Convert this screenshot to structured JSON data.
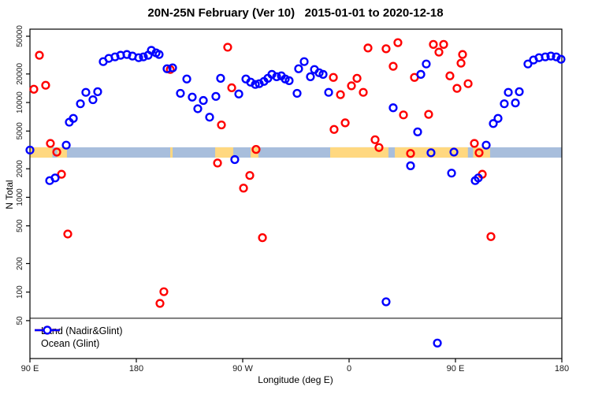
{
  "title": "20N-25N February (Ver 10)   2015-01-01 to 2020-12-18",
  "chart_data": {
    "type": "scatter",
    "title": "20N-25N February (Ver 10)   2015-01-01 to 2020-12-18",
    "xlabel": "Longitude (deg E)",
    "ylabel": "N Total",
    "x_axis": {
      "note": "longitude axis starts at 90E and wraps eastward 450 degrees to 180",
      "range_axis_deg": [
        90,
        540
      ],
      "ticks_axis_deg": [
        90,
        180,
        270,
        360,
        450,
        540
      ],
      "tick_labels": [
        "90 E",
        "180",
        "90 W",
        "0",
        "90 E",
        "180"
      ]
    },
    "y_axis": {
      "scale": "log",
      "range": [
        20,
        59000
      ],
      "ticks": [
        50000,
        20000,
        10000,
        5000,
        2000,
        1000,
        500,
        200,
        100,
        50
      ],
      "tick_labels": [
        "50000",
        "20000",
        "10000",
        "5000",
        "2000",
        "1000",
        "500",
        "200",
        "100",
        "50"
      ]
    },
    "grid": "off",
    "reference_line": {
      "value": 53,
      "color": "#000000"
    },
    "map_band": {
      "description": "land/ocean strip for 20N-25N drawn across plot",
      "value_range": [
        2620,
        3370
      ],
      "ocean_color": "#A8BEDC",
      "land_color": "#FFD880",
      "land_segments_axis_deg": [
        [
          90,
          109
        ],
        [
          113,
          121.3
        ],
        [
          208.7,
          210.7
        ],
        [
          246.7,
          262
        ],
        [
          276.7,
          283.3
        ],
        [
          344,
          393.3
        ],
        [
          398.7,
          460.5
        ],
        [
          465,
          479.3
        ]
      ]
    },
    "legend": {
      "position": "bottom-left"
    },
    "series": [
      {
        "name": "Land (Nadir&Glint)",
        "color": "#FF0000",
        "points": [
          [
            98,
            31500
          ],
          [
            93.3,
            13800
          ],
          [
            103.3,
            15200
          ],
          [
            107.3,
            3700
          ],
          [
            112.7,
            3000
          ],
          [
            116.7,
            1750
          ],
          [
            122,
            410
          ],
          [
            203.3,
            101
          ],
          [
            200,
            76
          ],
          [
            208.7,
            22300
          ],
          [
            248.7,
            2300
          ],
          [
            252,
            5800
          ],
          [
            257.3,
            38300
          ],
          [
            260.7,
            14300
          ],
          [
            270.7,
            1250
          ],
          [
            276,
            1700
          ],
          [
            281.3,
            3200
          ],
          [
            286.7,
            375
          ],
          [
            346.7,
            18400
          ],
          [
            352.7,
            12100
          ],
          [
            347.3,
            5200
          ],
          [
            356.7,
            6100
          ],
          [
            362,
            15000
          ],
          [
            366.7,
            18000
          ],
          [
            372,
            12800
          ],
          [
            376,
            37600
          ],
          [
            382,
            4050
          ],
          [
            385.3,
            3350
          ],
          [
            391.3,
            36900
          ],
          [
            397.3,
            24100
          ],
          [
            401.3,
            42800
          ],
          [
            406,
            7400
          ],
          [
            412,
            2900
          ],
          [
            415.3,
            18400
          ],
          [
            427.3,
            7500
          ],
          [
            431.3,
            41000
          ],
          [
            436,
            34000
          ],
          [
            440,
            41000
          ],
          [
            445.3,
            19100
          ],
          [
            451.3,
            14100
          ],
          [
            454.7,
            26000
          ],
          [
            456,
            32100
          ],
          [
            460.7,
            15800
          ],
          [
            466,
            3700
          ],
          [
            470,
            2950
          ],
          [
            472.7,
            1750
          ],
          [
            480,
            385
          ]
        ]
      },
      {
        "name": "Ocean (Glint)",
        "color": "#0000FF",
        "points": [
          [
            90,
            3150
          ],
          [
            106.7,
            1500
          ],
          [
            111.3,
            1600
          ],
          [
            120.7,
            3550
          ],
          [
            123.3,
            6200
          ],
          [
            126.7,
            6800
          ],
          [
            132.7,
            9700
          ],
          [
            137.3,
            12800
          ],
          [
            143.3,
            10700
          ],
          [
            147.3,
            13000
          ],
          [
            152,
            27000
          ],
          [
            156.7,
            29200
          ],
          [
            162,
            30300
          ],
          [
            166.7,
            31500
          ],
          [
            172,
            32100
          ],
          [
            176.7,
            30900
          ],
          [
            182,
            29700
          ],
          [
            186,
            30300
          ],
          [
            190,
            31500
          ],
          [
            192.7,
            35500
          ],
          [
            196.7,
            33400
          ],
          [
            199.3,
            32100
          ],
          [
            206,
            22700
          ],
          [
            210.7,
            23200
          ],
          [
            217.3,
            12500
          ],
          [
            222.7,
            17700
          ],
          [
            227.3,
            11400
          ],
          [
            232,
            8600
          ],
          [
            236.7,
            10500
          ],
          [
            242,
            7000
          ],
          [
            247.3,
            11600
          ],
          [
            251.3,
            18000
          ],
          [
            263.3,
            2500
          ],
          [
            266.7,
            12300
          ],
          [
            272.7,
            17700
          ],
          [
            276.7,
            16400
          ],
          [
            280.7,
            15500
          ],
          [
            284,
            15800
          ],
          [
            288,
            16700
          ],
          [
            291.3,
            18000
          ],
          [
            294.7,
            19800
          ],
          [
            298.7,
            18700
          ],
          [
            302.7,
            19100
          ],
          [
            306,
            17700
          ],
          [
            309.3,
            17000
          ],
          [
            316,
            12500
          ],
          [
            317.3,
            22700
          ],
          [
            322,
            27000
          ],
          [
            327.3,
            18700
          ],
          [
            330.7,
            22300
          ],
          [
            334.7,
            20600
          ],
          [
            338,
            19800
          ],
          [
            342.7,
            12800
          ],
          [
            391.3,
            79
          ],
          [
            397.3,
            8800
          ],
          [
            412,
            2150
          ],
          [
            418,
            4900
          ],
          [
            420.7,
            19800
          ],
          [
            425.3,
            25500
          ],
          [
            429.3,
            2950
          ],
          [
            434.7,
            29
          ],
          [
            446.7,
            1800
          ],
          [
            448.7,
            3000
          ],
          [
            466.7,
            1500
          ],
          [
            469.3,
            1600
          ],
          [
            476,
            3550
          ],
          [
            482,
            6000
          ],
          [
            486,
            6800
          ],
          [
            491.3,
            9700
          ],
          [
            494.7,
            12800
          ],
          [
            500.7,
            9900
          ],
          [
            504,
            13000
          ],
          [
            511.3,
            25500
          ],
          [
            516,
            28100
          ],
          [
            520.7,
            29700
          ],
          [
            526,
            30300
          ],
          [
            530.7,
            30900
          ],
          [
            535.3,
            30300
          ],
          [
            539.3,
            28600
          ]
        ]
      }
    ]
  }
}
